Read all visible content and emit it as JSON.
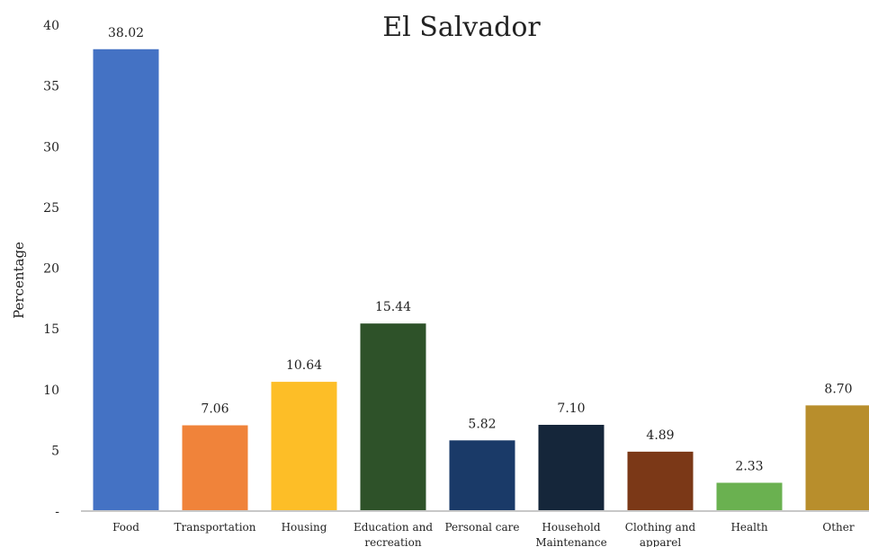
{
  "chart_data": {
    "type": "bar",
    "title": "El Salvador",
    "xlabel": "",
    "ylabel": "Percentage",
    "ylim": [
      0,
      40
    ],
    "yticks": [
      0,
      5,
      10,
      15,
      20,
      25,
      30,
      35,
      40
    ],
    "ytick_labels": [
      "-",
      "5",
      "10",
      "15",
      "20",
      "25",
      "30",
      "35",
      "40"
    ],
    "grid": false,
    "legend": "none",
    "categories": [
      "Food",
      "Transportation",
      "Housing",
      "Education and recreation",
      "Personal care",
      "Household Maintenance",
      "Clothing and apparel",
      "Health",
      "Other"
    ],
    "values": [
      38.02,
      7.06,
      10.64,
      15.44,
      5.82,
      7.1,
      4.89,
      2.33,
      8.7
    ],
    "data_labels": [
      "38.02",
      "7.06",
      "10.64",
      "15.44",
      "5.82",
      "7.10",
      "4.89",
      "2.33",
      "8.70"
    ],
    "colors": [
      "#4472c4",
      "#f0833a",
      "#fdbe27",
      "#2e5229",
      "#1a3a68",
      "#15263a",
      "#7b3817",
      "#6ab150",
      "#b88e2c"
    ]
  }
}
